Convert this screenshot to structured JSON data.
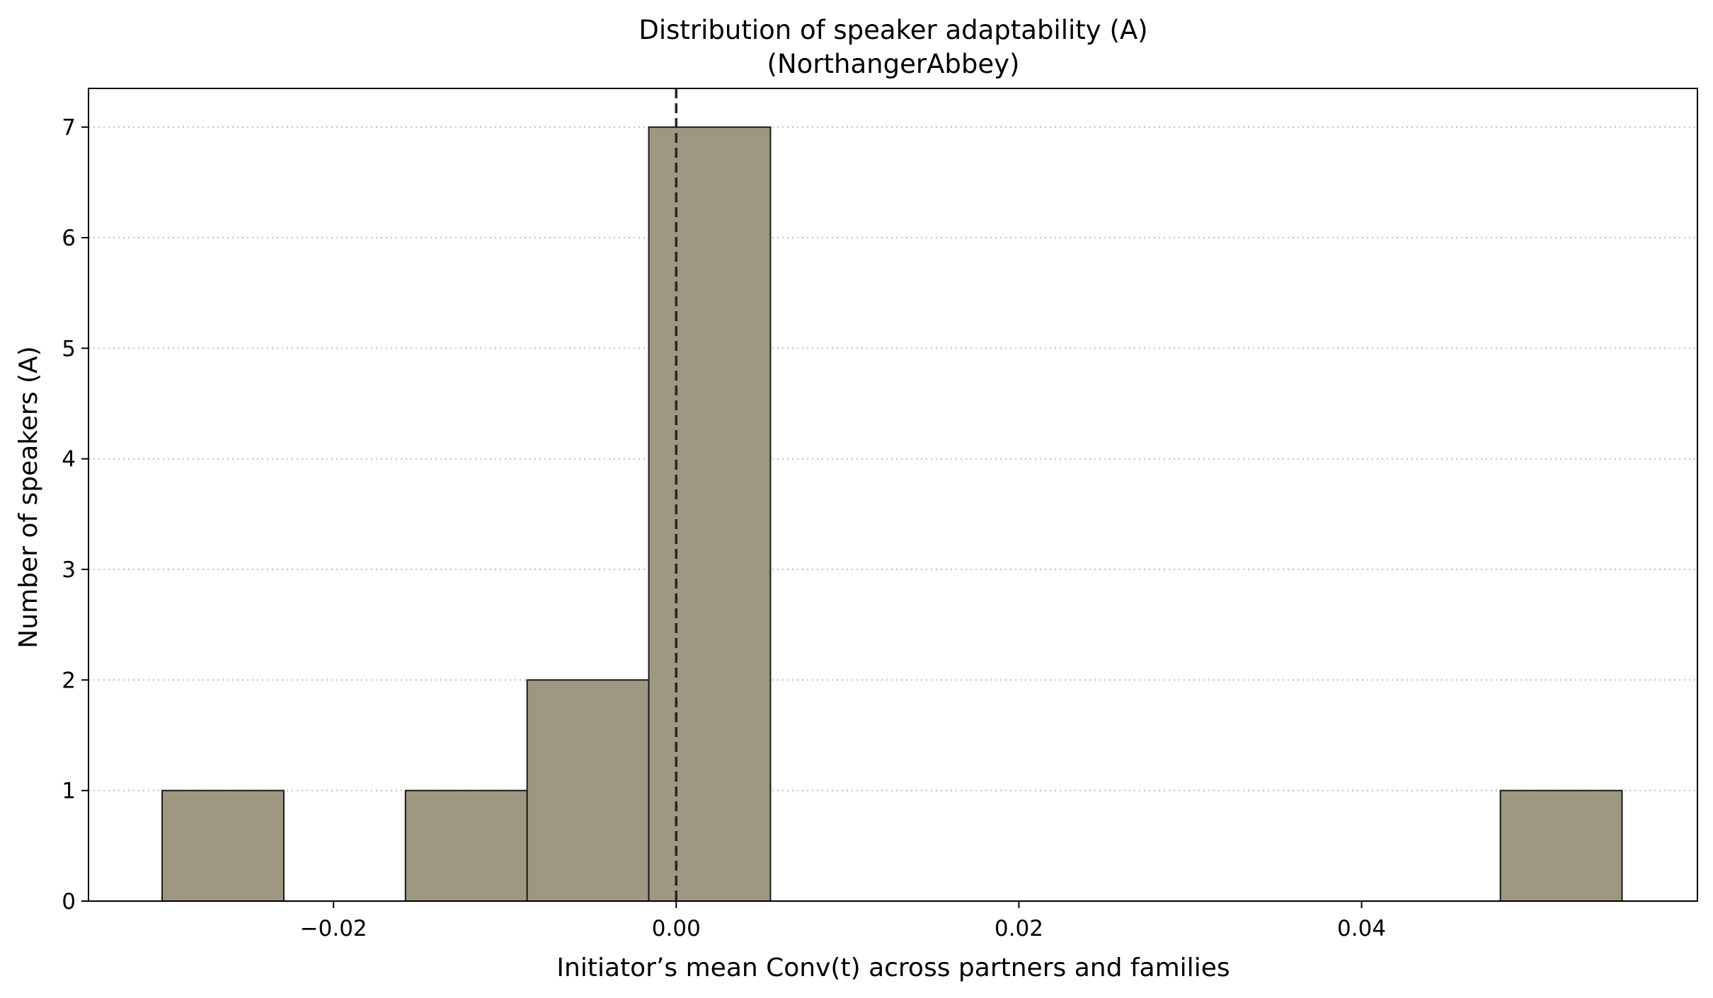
{
  "chart_data": {
    "type": "bar",
    "title": "Distribution of speaker adaptability (A)",
    "subtitle": "(NorthangerAbbey)",
    "xlabel": "Initiator’s mean Conv(t) across partners and families",
    "ylabel": "Number of speakers (A)",
    "xlim": [
      -0.0343,
      0.0596
    ],
    "ylim": [
      0,
      7.35
    ],
    "x_ticks": [
      -0.02,
      0.0,
      0.02,
      0.04
    ],
    "x_tick_labels": [
      "−0.02",
      "0.00",
      "0.02",
      "0.04"
    ],
    "y_ticks": [
      0,
      1,
      2,
      3,
      4,
      5,
      6,
      7
    ],
    "y_tick_labels": [
      "0",
      "1",
      "2",
      "3",
      "4",
      "5",
      "6",
      "7"
    ],
    "grid": "y-dotted",
    "reference_line_x": 0.0,
    "bins": [
      {
        "x0": -0.03,
        "x1": -0.0229,
        "count": 1
      },
      {
        "x0": -0.0229,
        "x1": -0.0158,
        "count": 0
      },
      {
        "x0": -0.0158,
        "x1": -0.0087,
        "count": 1
      },
      {
        "x0": -0.0087,
        "x1": -0.0016,
        "count": 2
      },
      {
        "x0": -0.0016,
        "x1": 0.0055,
        "count": 7
      },
      {
        "x0": 0.0055,
        "x1": 0.0126,
        "count": 0
      },
      {
        "x0": 0.0126,
        "x1": 0.0197,
        "count": 0
      },
      {
        "x0": 0.0197,
        "x1": 0.0268,
        "count": 0
      },
      {
        "x0": 0.0268,
        "x1": 0.0339,
        "count": 0
      },
      {
        "x0": 0.0339,
        "x1": 0.041,
        "count": 0
      },
      {
        "x0": 0.041,
        "x1": 0.0481,
        "count": 0
      },
      {
        "x0": 0.0481,
        "x1": 0.0552,
        "count": 1
      }
    ],
    "colors": {
      "bar_fill": "#9e9883",
      "bar_edge": "#1a1a1a",
      "reference_line": "#262626"
    }
  }
}
